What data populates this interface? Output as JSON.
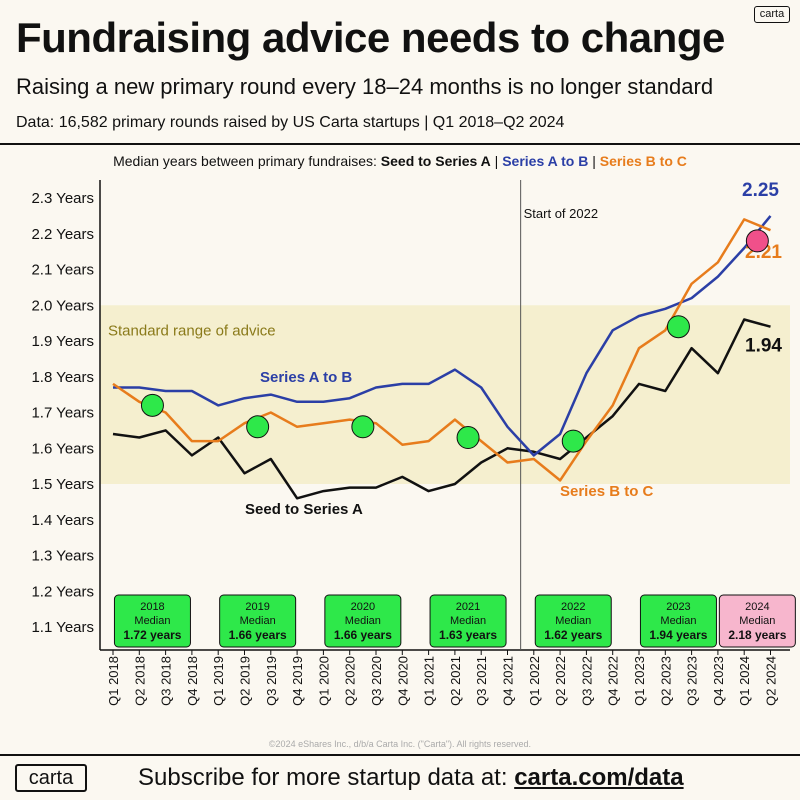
{
  "header": {
    "logo_text": "carta",
    "title": "Fundraising advice needs to change",
    "subtitle": "Raising a new primary round every 18–24 months is no longer standard",
    "source": "Data: 16,582 primary rounds raised by US Carta startups | Q1 2018–Q2 2024"
  },
  "legend": {
    "prefix": "Median years between primary fundraises:",
    "seed": "Seed to Series A",
    "sep1": " | ",
    "ab": "Series A to B",
    "sep2": " | ",
    "bc": "Series B to C"
  },
  "footer": {
    "copyright": "©2024 eShares Inc., d/b/a Carta Inc. (\"Carta\"). All rights reserved.",
    "logo_text": "carta",
    "subscribe_prefix": "Subscribe for more startup data at:",
    "subscribe_link": "carta.com/data"
  },
  "colors": {
    "seed": "#111111",
    "ab": "#2b3fa6",
    "bc": "#e77c1c",
    "marker": "#2ee84a",
    "marker_2024": "#f0508a",
    "band": "#f5efcf",
    "median_box": "#2ee84a",
    "median_box_2024": "#f7b6cd"
  },
  "chart_data": {
    "type": "line",
    "categories": [
      "Q1 2018",
      "Q2 2018",
      "Q3 2018",
      "Q4 2018",
      "Q1 2019",
      "Q2 2019",
      "Q3 2019",
      "Q4 2019",
      "Q1 2020",
      "Q2 2020",
      "Q3 2020",
      "Q4 2020",
      "Q1 2021",
      "Q2 2021",
      "Q3 2021",
      "Q4 2021",
      "Q1 2022",
      "Q2 2022",
      "Q3 2022",
      "Q4 2022",
      "Q1 2023",
      "Q2 2023",
      "Q3 2023",
      "Q4 2023",
      "Q1 2024",
      "Q2 2024"
    ],
    "series": [
      {
        "name": "Seed to Series A",
        "key": "seed",
        "values": [
          1.64,
          1.63,
          1.65,
          1.58,
          1.63,
          1.53,
          1.57,
          1.46,
          1.48,
          1.49,
          1.49,
          1.52,
          1.48,
          1.5,
          1.56,
          1.6,
          1.59,
          1.57,
          1.63,
          1.69,
          1.78,
          1.76,
          1.88,
          1.81,
          1.96,
          1.94
        ]
      },
      {
        "name": "Series A to B",
        "key": "ab",
        "values": [
          1.77,
          1.77,
          1.76,
          1.76,
          1.72,
          1.74,
          1.75,
          1.73,
          1.73,
          1.74,
          1.77,
          1.78,
          1.78,
          1.82,
          1.77,
          1.66,
          1.58,
          1.64,
          1.81,
          1.93,
          1.97,
          1.99,
          2.02,
          2.08,
          2.16,
          2.25
        ]
      },
      {
        "name": "Series B to C",
        "key": "bc",
        "values": [
          1.78,
          1.73,
          1.7,
          1.62,
          1.62,
          1.67,
          1.7,
          1.66,
          1.67,
          1.68,
          1.67,
          1.61,
          1.62,
          1.68,
          1.62,
          1.56,
          1.57,
          1.51,
          1.62,
          1.72,
          1.88,
          1.93,
          2.06,
          2.12,
          2.24,
          2.21
        ]
      }
    ],
    "yticks": [
      "1.1 Years",
      "1.2 Years",
      "1.3 Years",
      "1.4 Years",
      "1.5 Years",
      "1.6 Years",
      "1.7 Years",
      "1.8 Years",
      "1.9 Years",
      "2.0 Years",
      "2.1 Years",
      "2.2 Years",
      "2.3 Years"
    ],
    "ylim": [
      1.05,
      2.33
    ],
    "standard_range": {
      "label": "Standard range of advice",
      "from": 1.5,
      "to": 2.0
    },
    "vline": {
      "at_index": 15.5,
      "label": "Start of 2022"
    },
    "inline_labels": {
      "ab": "Series A to B",
      "seed": "Seed to Series A",
      "bc": "Series B to C"
    },
    "end_labels": {
      "ab": "2.25",
      "bc": "2.21",
      "seed": "1.94"
    },
    "yearly_medians": [
      {
        "year": "2018",
        "label": "Median",
        "value_text": "1.72 years",
        "value": 1.72,
        "center_index": 1.5
      },
      {
        "year": "2019",
        "label": "Median",
        "value_text": "1.66 years",
        "value": 1.66,
        "center_index": 5.5
      },
      {
        "year": "2020",
        "label": "Median",
        "value_text": "1.66 years",
        "value": 1.66,
        "center_index": 9.5
      },
      {
        "year": "2021",
        "label": "Median",
        "value_text": "1.63 years",
        "value": 1.63,
        "center_index": 13.5
      },
      {
        "year": "2022",
        "label": "Median",
        "value_text": "1.62 years",
        "value": 1.62,
        "center_index": 17.5
      },
      {
        "year": "2023",
        "label": "Median",
        "value_text": "1.94 years",
        "value": 1.94,
        "center_index": 21.5
      },
      {
        "year": "2024",
        "label": "Median",
        "value_text": "2.18 years",
        "value": 2.18,
        "center_index": 24.5,
        "highlight": true
      }
    ],
    "grid": false
  }
}
